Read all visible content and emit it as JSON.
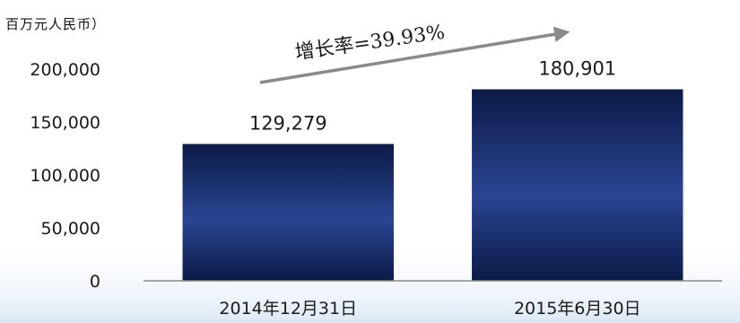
{
  "unit_label": "百万元人民币）",
  "chart_data": {
    "type": "bar",
    "title": "",
    "xlabel": "",
    "ylabel": "百万元人民币）",
    "categories": [
      "2014年12月31日",
      "2015年6月30日"
    ],
    "values": [
      129279,
      180901
    ],
    "value_labels": [
      "129,279",
      "180,901"
    ],
    "ylim": [
      0,
      200000
    ],
    "yticks": [
      0,
      50000,
      100000,
      150000,
      200000
    ],
    "ytick_labels": [
      "0",
      "50,000",
      "100,000",
      "150,000",
      "200,000"
    ],
    "grid": false,
    "legend": "none",
    "annotation": "增长率=39.93%",
    "colors": {
      "bar_edge": "#0b1a47",
      "bar_mid": "#2b4592",
      "arrow": "#8a8a8a",
      "axis": "#8a8a8a"
    }
  }
}
